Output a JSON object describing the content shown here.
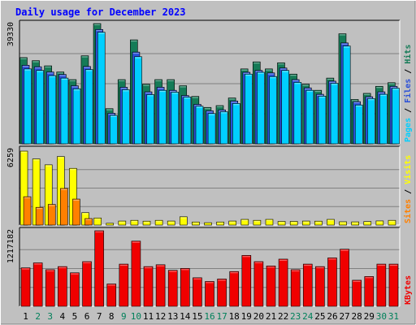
{
  "chart_data": {
    "type": "bar",
    "title": "Daily usage for December 2023",
    "days": [
      "1",
      "2",
      "3",
      "4",
      "5",
      "6",
      "7",
      "8",
      "9",
      "10",
      "11",
      "12",
      "13",
      "14",
      "15",
      "16",
      "17",
      "18",
      "19",
      "20",
      "21",
      "22",
      "23",
      "24",
      "25",
      "26",
      "27",
      "28",
      "29",
      "30",
      "31"
    ],
    "weekend_days": [
      "2",
      "3",
      "9",
      "10",
      "16",
      "17",
      "23",
      "24",
      "30",
      "31"
    ],
    "panels": [
      {
        "id": "hits_files_pages",
        "ymax_label": "39330",
        "ymax": 39330,
        "right_labels": [
          "Pages",
          "Files",
          "Hits"
        ],
        "series": [
          {
            "name": "Hits",
            "color": "#157b57",
            "values": [
              28200,
              27200,
              25500,
              23500,
              21000,
              28800,
              39330,
              11500,
              21000,
              34000,
              19500,
              21000,
              21000,
              19000,
              15500,
              11900,
              12500,
              15000,
              24500,
              26800,
              24500,
              26500,
              22800,
              19500,
              17500,
              21500,
              36000,
              14500,
              16500,
              18800,
              20000
            ]
          },
          {
            "name": "Files",
            "color": "#2b50d8",
            "values": [
              25700,
              25200,
              23500,
              22700,
              19000,
              25300,
              37400,
              10000,
              18500,
              30000,
              17000,
              18500,
              17500,
              15800,
              12900,
              10800,
              11100,
              14000,
              23400,
              24000,
              23200,
              24800,
              21000,
              18300,
              16200,
              20500,
              33000,
              13800,
              15400,
              17000,
              18800
            ]
          },
          {
            "name": "Pages",
            "color": "#00cfff",
            "values": [
              24500,
              24000,
              22300,
              21500,
              18000,
              24300,
              36500,
              9300,
              17700,
              28500,
              16100,
              17500,
              16900,
              15300,
              12300,
              9900,
              10500,
              13200,
              22800,
              23400,
              22000,
              24000,
              20100,
              17500,
              15600,
              19800,
              32000,
              12700,
              14800,
              16200,
              18200
            ]
          }
        ]
      },
      {
        "id": "visits_sites",
        "ymax_label": "6259",
        "ymax": 6259,
        "right_labels": [
          "Sites",
          "Visits"
        ],
        "series": [
          {
            "name": "Visits",
            "color": "#ffff00",
            "values": [
              6259,
              5600,
              5100,
              5800,
              4800,
              1050,
              600,
              150,
              340,
              400,
              330,
              400,
              340,
              700,
              260,
              200,
              260,
              340,
              480,
              400,
              480,
              310,
              310,
              340,
              330,
              480,
              280,
              270,
              300,
              350,
              400
            ]
          },
          {
            "name": "Sites",
            "color": "#ff8000",
            "values": [
              2400,
              1500,
              1750,
              3100,
              2200,
              550,
              0,
              0,
              0,
              0,
              0,
              0,
              0,
              0,
              0,
              0,
              0,
              0,
              0,
              0,
              0,
              0,
              0,
              0,
              0,
              0,
              0,
              0,
              0,
              0,
              0
            ]
          }
        ]
      },
      {
        "id": "kbytes",
        "ymax_label": "1217182",
        "ymax": 1217182,
        "right_labels": [
          "KBytes"
        ],
        "series": [
          {
            "name": "KBytes",
            "color": "#f00000",
            "values": [
              620000,
              700000,
              590000,
              640000,
              540000,
              720000,
              1217182,
              360000,
              680000,
              1050000,
              640000,
              670000,
              580000,
              610000,
              460000,
              400000,
              440000,
              560000,
              820000,
              720000,
              650000,
              760000,
              590000,
              680000,
              640000,
              780000,
              920000,
              420000,
              480000,
              680000,
              680000
            ]
          }
        ]
      }
    ]
  }
}
